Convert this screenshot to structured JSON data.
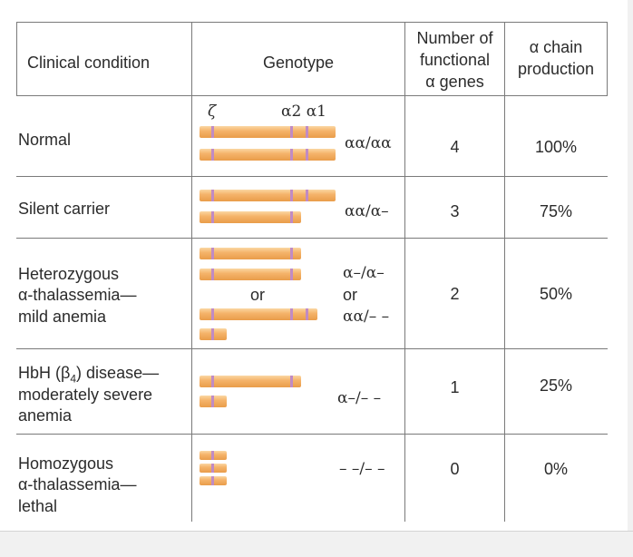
{
  "headers": {
    "clinical_condition": "Clinical condition",
    "genotype": "Genotype",
    "num_genes_l1": "Number of",
    "num_genes_l2": "functional",
    "num_genes_l3": "α genes",
    "production_l1": "α chain",
    "production_l2": "production"
  },
  "gene_labels": {
    "zeta": "ζ",
    "alpha2_alpha1": "α2 α1"
  },
  "rows": [
    {
      "condition": [
        "Normal"
      ],
      "genotype": [
        "αα/αα"
      ],
      "genes": "4",
      "production": "100%"
    },
    {
      "condition": [
        "Silent carrier"
      ],
      "genotype": [
        "αα/α–"
      ],
      "genes": "3",
      "production": "75%"
    },
    {
      "condition": [
        "Heterozygous",
        "α-thalassemia—",
        "mild anemia"
      ],
      "genotype": [
        "α–/α–",
        "or",
        "αα/– –"
      ],
      "or_label": "or",
      "genes": "2",
      "production": "50%"
    },
    {
      "condition": [
        "HbH (β4) disease—",
        "moderately severe",
        "anemia"
      ],
      "genotype": [
        "α–/– –"
      ],
      "genes": "1",
      "production": "25%"
    },
    {
      "condition": [
        "Homozygous",
        "α-thalassemia—",
        "lethal"
      ],
      "genotype": [
        "– –/– –"
      ],
      "genes": "0",
      "production": "0%"
    }
  ],
  "colors": {
    "chromosome": "#f5b46b",
    "gene_band": "#c08bc4",
    "rule": "#7a7a7a"
  }
}
